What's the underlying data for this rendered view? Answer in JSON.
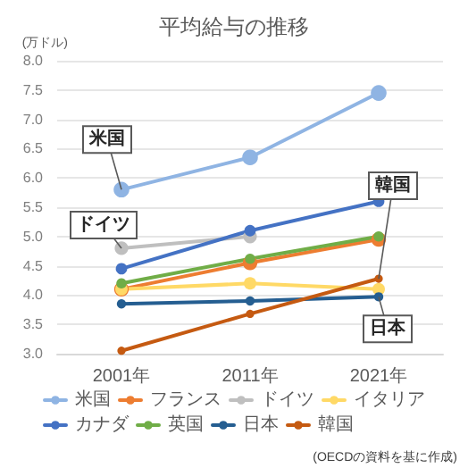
{
  "chart_data": {
    "type": "line",
    "title": "平均給与の推移",
    "ylabel": "(万ドル)",
    "categories": [
      "2001年",
      "2011年",
      "2021年"
    ],
    "series": [
      {
        "name": "米国",
        "color": "#8fb4e3",
        "values": [
          5.8,
          6.35,
          7.45
        ]
      },
      {
        "name": "フランス",
        "color": "#ed7d31",
        "values": [
          4.1,
          4.55,
          4.95
        ]
      },
      {
        "name": "ドイツ",
        "color": "#bfbfbf",
        "values": [
          4.8,
          5.0,
          null
        ]
      },
      {
        "name": "イタリア",
        "color": "#ffd966",
        "values": [
          4.1,
          4.2,
          4.1
        ]
      },
      {
        "name": "カナダ",
        "color": "#4472c4",
        "values": [
          4.45,
          5.1,
          5.6
        ]
      },
      {
        "name": "英国",
        "color": "#70ad47",
        "values": [
          4.2,
          4.62,
          5.0
        ]
      },
      {
        "name": "日本",
        "color": "#255e91",
        "values": [
          3.85,
          3.9,
          3.97
        ]
      },
      {
        "name": "韓国",
        "color": "#c55a11",
        "values": [
          3.05,
          3.68,
          4.28
        ]
      }
    ],
    "ylim": [
      3,
      8
    ],
    "yticks": [
      {
        "value": 3,
        "label": "3.0"
      },
      {
        "value": 3.5,
        "label": "3.5"
      },
      {
        "value": 4,
        "label": "4.0"
      },
      {
        "value": 4.5,
        "label": "4.5"
      },
      {
        "value": 5,
        "label": "5.0"
      },
      {
        "value": 5.5,
        "label": "5.5"
      },
      {
        "value": 6,
        "label": "6.0"
      },
      {
        "value": 6.5,
        "label": "6.5"
      },
      {
        "value": 7,
        "label": "7.0"
      },
      {
        "value": 7.5,
        "label": "7.5"
      },
      {
        "value": 8,
        "label": "8.0"
      }
    ],
    "grid": "y",
    "legend": "bottom",
    "marker": "circle",
    "line_style": "solid",
    "annotations": [
      {
        "text": "米国",
        "x": "2001年",
        "y": 5.8
      },
      {
        "text": "ドイツ",
        "x": "2001年",
        "y": 4.8
      },
      {
        "text": "韓国",
        "x": "2021年",
        "y": 4.28
      },
      {
        "text": "日本",
        "x": "2021年",
        "y": 3.97
      },
      "(OECDの資料を基に作成)"
    ]
  }
}
